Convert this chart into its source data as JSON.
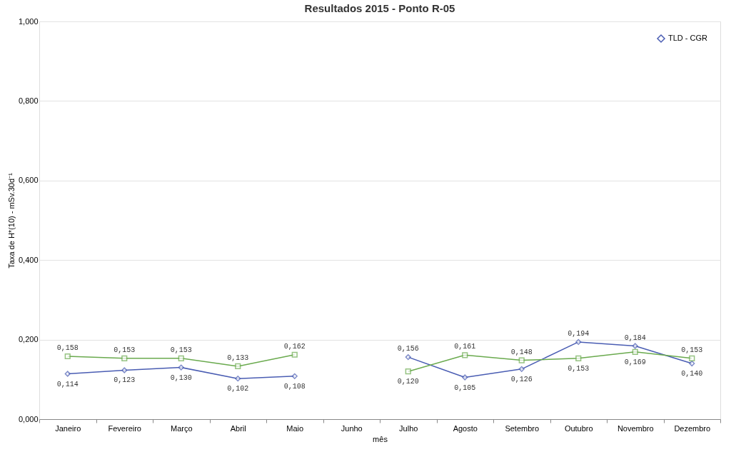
{
  "chart_data": {
    "type": "line",
    "title": "Resultados 2015 - Ponto R-05",
    "xlabel": "mês",
    "ylabel": "Taxa de H*(10) - mSv.30d⁻¹",
    "categories": [
      "Janeiro",
      "Fevereiro",
      "Março",
      "Abril",
      "Maio",
      "Junho",
      "Julho",
      "Agosto",
      "Setembro",
      "Outubro",
      "Novembro",
      "Dezembro"
    ],
    "series": [
      {
        "name": "TLD - CGR",
        "color": "#4a5db3",
        "marker": "diamond",
        "values": [
          0.114,
          0.123,
          0.13,
          0.102,
          0.108,
          null,
          0.156,
          0.105,
          0.126,
          0.194,
          0.184,
          0.14
        ],
        "value_labels": [
          "0,114",
          "0,123",
          "0,130",
          "0,102",
          "0,108",
          null,
          "0,156",
          "0,105",
          "0,126",
          "0,194",
          "0,184",
          "0,140"
        ]
      },
      {
        "color": "#6aaa4e",
        "marker": "square",
        "values": [
          0.158,
          0.153,
          0.153,
          0.133,
          0.162,
          null,
          0.12,
          0.161,
          0.148,
          0.153,
          0.169,
          0.153
        ],
        "value_labels": [
          "0,158",
          "0,153",
          "0,153",
          "0,133",
          "0,162",
          null,
          "0,120",
          "0,161",
          "0,148",
          "0,153",
          "0,169",
          "0,153"
        ]
      }
    ],
    "ylim": [
      0,
      1
    ],
    "yticks": [
      {
        "value": 0,
        "label": "0,000"
      },
      {
        "value": 0.2,
        "label": "0,200"
      },
      {
        "value": 0.4,
        "label": "0,400"
      },
      {
        "value": 0.6,
        "label": "0,600"
      },
      {
        "value": 0.8,
        "label": "0,800"
      },
      {
        "value": 1,
        "label": "1,000"
      }
    ],
    "grid": "y",
    "legend": "top right",
    "line_style": "solid"
  }
}
